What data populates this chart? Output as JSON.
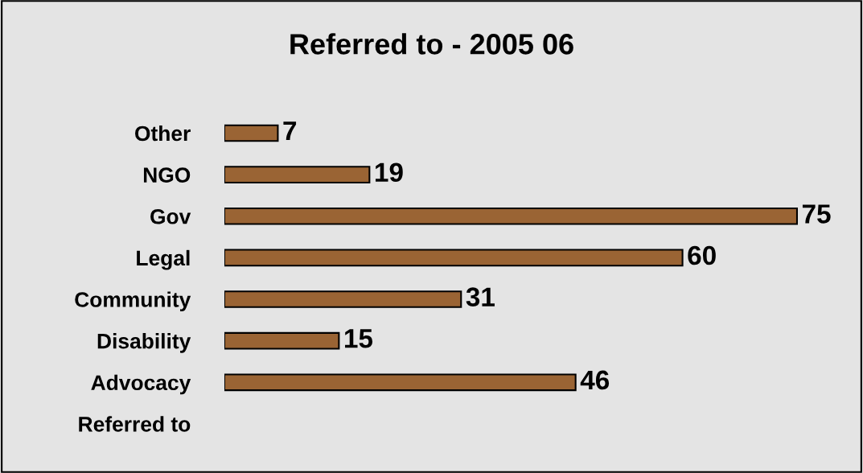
{
  "chart_data": {
    "type": "bar",
    "orientation": "horizontal",
    "title": "Referred to - 2005 06",
    "categories": [
      "Other",
      "NGO",
      "Gov",
      "Legal",
      "Community",
      "Disability",
      "Advocacy",
      "Referred to"
    ],
    "values": [
      7,
      19,
      75,
      60,
      31,
      15,
      46,
      null
    ],
    "color": "#9a6434",
    "data_labels": true,
    "grid": false,
    "legend": false
  }
}
